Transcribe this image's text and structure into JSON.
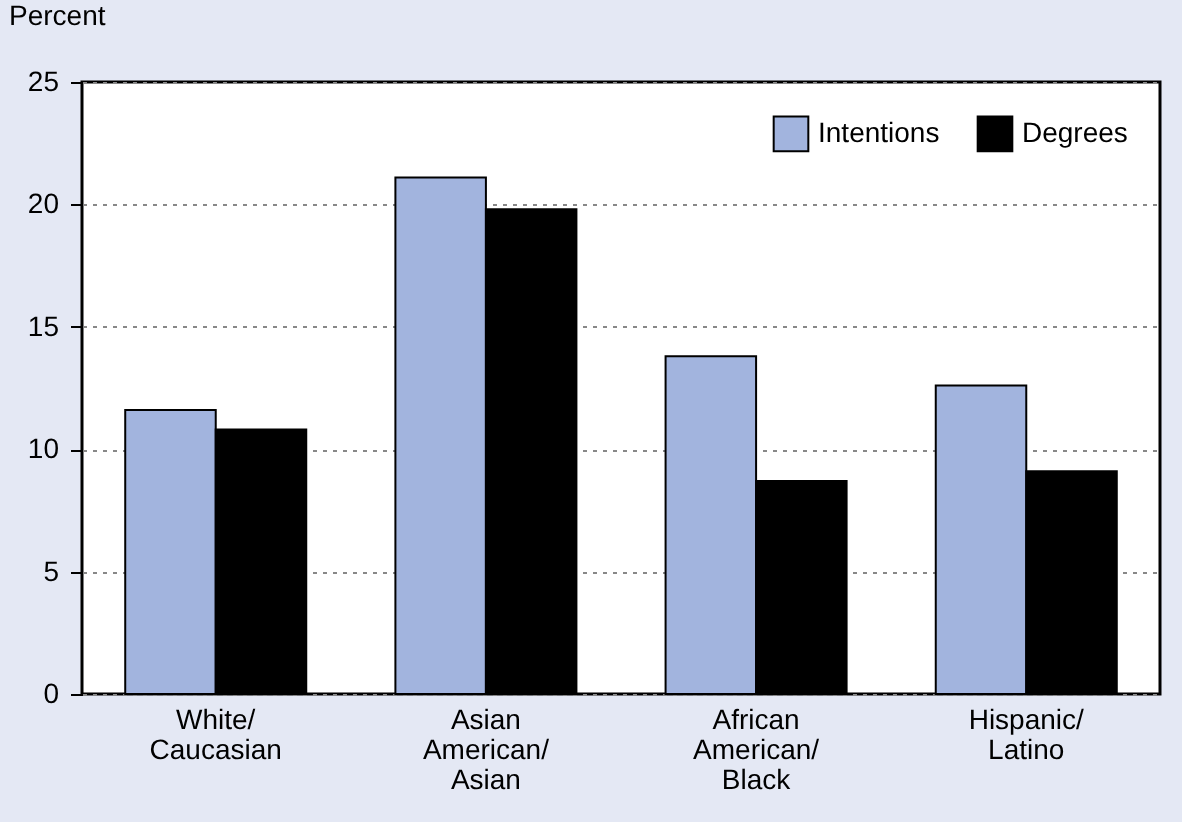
{
  "chart_data": {
    "type": "bar",
    "ylabel": "Percent",
    "categories": [
      "White/Caucasian",
      "Asian American/Asian",
      "African American/Black",
      "Hispanic/Latino"
    ],
    "series": [
      {
        "name": "Intentions",
        "color": "#a2b4de",
        "values": [
          11.6,
          21.1,
          13.8,
          12.6
        ]
      },
      {
        "name": "Degrees",
        "color": "#000000",
        "values": [
          10.8,
          19.8,
          8.7,
          9.1
        ]
      }
    ],
    "ylim": [
      0,
      25
    ],
    "yticks": [
      0,
      5,
      10,
      15,
      20,
      25
    ],
    "grid": "y",
    "legend": "top right"
  }
}
